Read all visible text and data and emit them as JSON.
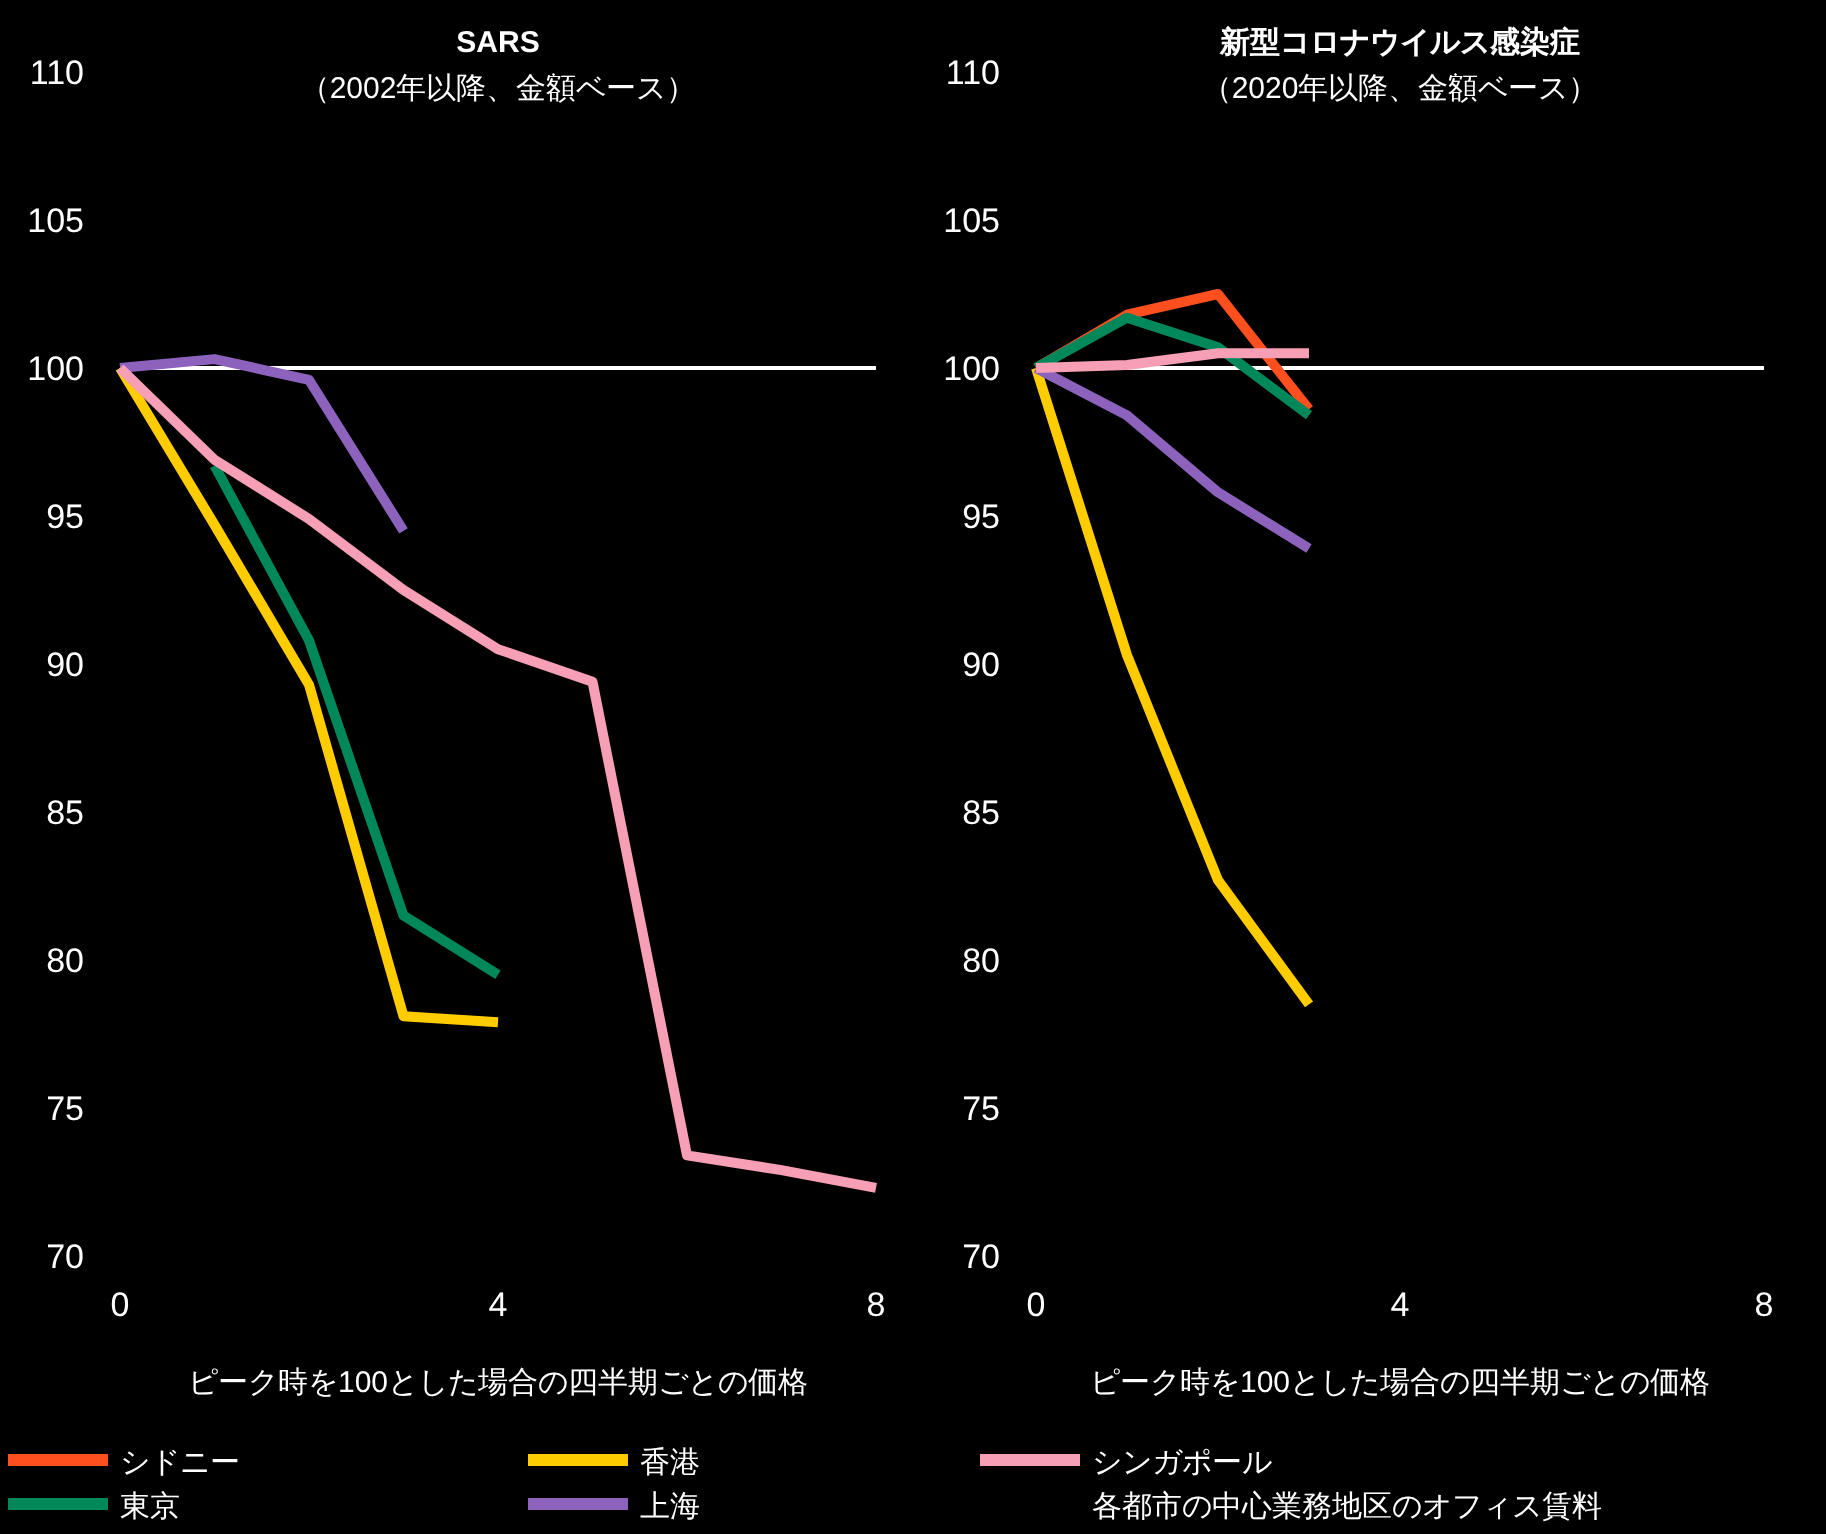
{
  "chart_data": [
    {
      "type": "line",
      "title": "SARS",
      "subtitle": "（2002年以降、金額ベース）",
      "xlabel": "ピーク時を100とした場合の四半期ごとの価格",
      "xlim": [
        0,
        8
      ],
      "xticks": [
        0,
        4,
        8
      ],
      "ylim": [
        70,
        110
      ],
      "yticks": [
        70,
        75,
        80,
        85,
        90,
        95,
        100,
        105,
        110
      ],
      "grid": false,
      "legend": "bottom",
      "marker": "none",
      "line_style": "solid",
      "ref_lines": [
        {
          "axis": "y",
          "value": 100,
          "color": "#ffffff"
        }
      ],
      "series": [
        {
          "name": "東京",
          "color": "#00875a",
          "x": [
            1,
            2,
            3,
            4
          ],
          "values": [
            96.7,
            90.8,
            81.5,
            79.5
          ]
        },
        {
          "name": "香港",
          "color": "#ffcc00",
          "x": [
            0,
            1,
            2,
            3,
            4
          ],
          "values": [
            100,
            94.7,
            89.3,
            78.1,
            77.9
          ]
        },
        {
          "name": "上海",
          "color": "#8c62bd",
          "x": [
            0,
            1,
            2,
            3
          ],
          "values": [
            100,
            100.3,
            99.6,
            94.5
          ]
        },
        {
          "name": "シンガポール",
          "color": "#f79fb5",
          "x": [
            0,
            1,
            2,
            3,
            4,
            5,
            6,
            7,
            8
          ],
          "values": [
            100,
            96.9,
            94.9,
            92.5,
            90.5,
            89.4,
            73.4,
            72.9,
            72.3
          ]
        }
      ]
    },
    {
      "type": "line",
      "title": "新型コロナウイルス感染症",
      "subtitle": "（2020年以降、金額ベース）",
      "xlabel": "ピーク時を100とした場合の四半期ごとの価格",
      "xlim": [
        0,
        8
      ],
      "xticks": [
        0,
        4,
        8
      ],
      "ylim": [
        70,
        110
      ],
      "yticks": [
        70,
        75,
        80,
        85,
        90,
        95,
        100,
        105,
        110
      ],
      "grid": false,
      "legend": "bottom",
      "marker": "none",
      "line_style": "solid",
      "ref_lines": [
        {
          "axis": "y",
          "value": 100,
          "color": "#ffffff"
        }
      ],
      "annotations": [
        "各都市の中心業務地区のオフィス賃料"
      ],
      "series": [
        {
          "name": "シドニー",
          "color": "#ff4f1f",
          "x": [
            0,
            1,
            2,
            3
          ],
          "values": [
            100,
            101.8,
            102.5,
            98.6
          ]
        },
        {
          "name": "東京",
          "color": "#00875a",
          "x": [
            0,
            1,
            2,
            3
          ],
          "values": [
            100,
            101.7,
            100.7,
            98.4
          ]
        },
        {
          "name": "香港",
          "color": "#ffcc00",
          "x": [
            0,
            1,
            2,
            3
          ],
          "values": [
            100,
            90.3,
            82.7,
            78.5
          ]
        },
        {
          "name": "上海",
          "color": "#8c62bd",
          "x": [
            0,
            1,
            2,
            3
          ],
          "values": [
            100,
            98.4,
            95.8,
            93.9
          ]
        },
        {
          "name": "シンガポール",
          "color": "#f79fb5",
          "x": [
            0,
            1,
            2,
            3
          ],
          "values": [
            100,
            100.1,
            100.5,
            100.5
          ]
        }
      ]
    }
  ]
}
